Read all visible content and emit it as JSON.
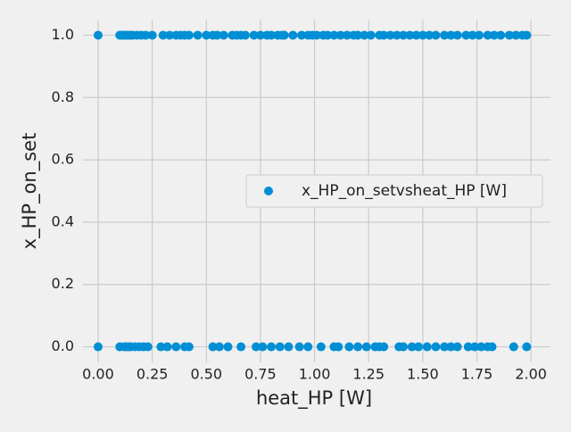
{
  "chart_data": {
    "type": "scatter",
    "x_label": "heat_HP [W]",
    "y_label": "x_HP_on_set",
    "xlim": [
      -0.07,
      2.09
    ],
    "ylim": [
      -0.05,
      1.05
    ],
    "xticks": [
      {
        "value": 0,
        "label": "0.00"
      },
      {
        "value": 0.25,
        "label": "0.25"
      },
      {
        "value": 0.5,
        "label": "0.50"
      },
      {
        "value": 0.75,
        "label": "0.75"
      },
      {
        "value": 1,
        "label": "1.00"
      },
      {
        "value": 1.25,
        "label": "1.25"
      },
      {
        "value": 1.5,
        "label": "1.50"
      },
      {
        "value": 1.75,
        "label": "1.75"
      },
      {
        "value": 2,
        "label": "2.00"
      }
    ],
    "yticks": [
      {
        "value": 0,
        "label": "0.0"
      },
      0.2,
      0.4,
      0.6,
      0.8,
      {
        "value": 1,
        "label": "1.0"
      }
    ],
    "grid": true,
    "legend": "center right",
    "x": [
      0,
      0.1,
      0.11,
      0.12,
      0.13,
      0.14,
      0.15,
      0.16,
      0.18,
      0.2,
      0.22,
      0.25,
      0.3,
      0.33,
      0.36,
      0.38,
      0.4,
      0.42,
      0.46,
      0.5,
      0.53,
      0.55,
      0.58,
      0.62,
      0.64,
      0.66,
      0.68,
      0.72,
      0.75,
      0.78,
      0.8,
      0.83,
      0.85,
      0.86,
      0.9,
      0.94,
      0.97,
      0.99,
      1.01,
      1.04,
      1.06,
      1.09,
      1.12,
      1.15,
      1.18,
      1.2,
      1.23,
      1.26,
      1.3,
      1.32,
      1.35,
      1.38,
      1.41,
      1.44,
      1.47,
      1.5,
      1.53,
      1.56,
      1.6,
      1.63,
      1.66,
      1.7,
      1.73,
      1.76,
      1.8,
      1.83,
      1.86,
      1.9,
      1.93,
      1.96,
      1.98,
      0,
      0.1,
      0.12,
      0.13,
      0.14,
      0.15,
      0.17,
      0.19,
      0.21,
      0.23,
      0.29,
      0.32,
      0.36,
      0.4,
      0.42,
      0.53,
      0.56,
      0.6,
      0.66,
      0.73,
      0.76,
      0.8,
      0.84,
      0.88,
      0.93,
      0.97,
      1.03,
      1.09,
      1.11,
      1.16,
      1.2,
      1.24,
      1.28,
      1.3,
      1.32,
      1.39,
      1.41,
      1.45,
      1.48,
      1.52,
      1.56,
      1.6,
      1.63,
      1.66,
      1.71,
      1.74,
      1.77,
      1.8,
      1.82,
      1.92,
      1.98
    ],
    "series": [
      {
        "name": "x_HP_on_setvsheat_HP [W]",
        "color": "#008fd5",
        "values": [
          1,
          1,
          1,
          1,
          1,
          1,
          1,
          1,
          1,
          1,
          1,
          1,
          1,
          1,
          1,
          1,
          1,
          1,
          1,
          1,
          1,
          1,
          1,
          1,
          1,
          1,
          1,
          1,
          1,
          1,
          1,
          1,
          1,
          1,
          1,
          1,
          1,
          1,
          1,
          1,
          1,
          1,
          1,
          1,
          1,
          1,
          1,
          1,
          1,
          1,
          1,
          1,
          1,
          1,
          1,
          1,
          1,
          1,
          1,
          1,
          1,
          1,
          1,
          1,
          1,
          1,
          1,
          1,
          1,
          1,
          1,
          0,
          0,
          0,
          0,
          0,
          0,
          0,
          0,
          0,
          0,
          0,
          0,
          0,
          0,
          0,
          0,
          0,
          0,
          0,
          0,
          0,
          0,
          0,
          0,
          0,
          0,
          0,
          0,
          0,
          0,
          0,
          0,
          0,
          0,
          0,
          0,
          0,
          0,
          0,
          0,
          0,
          0,
          0,
          0,
          0,
          0,
          0,
          0,
          0,
          0,
          0
        ]
      }
    ]
  }
}
